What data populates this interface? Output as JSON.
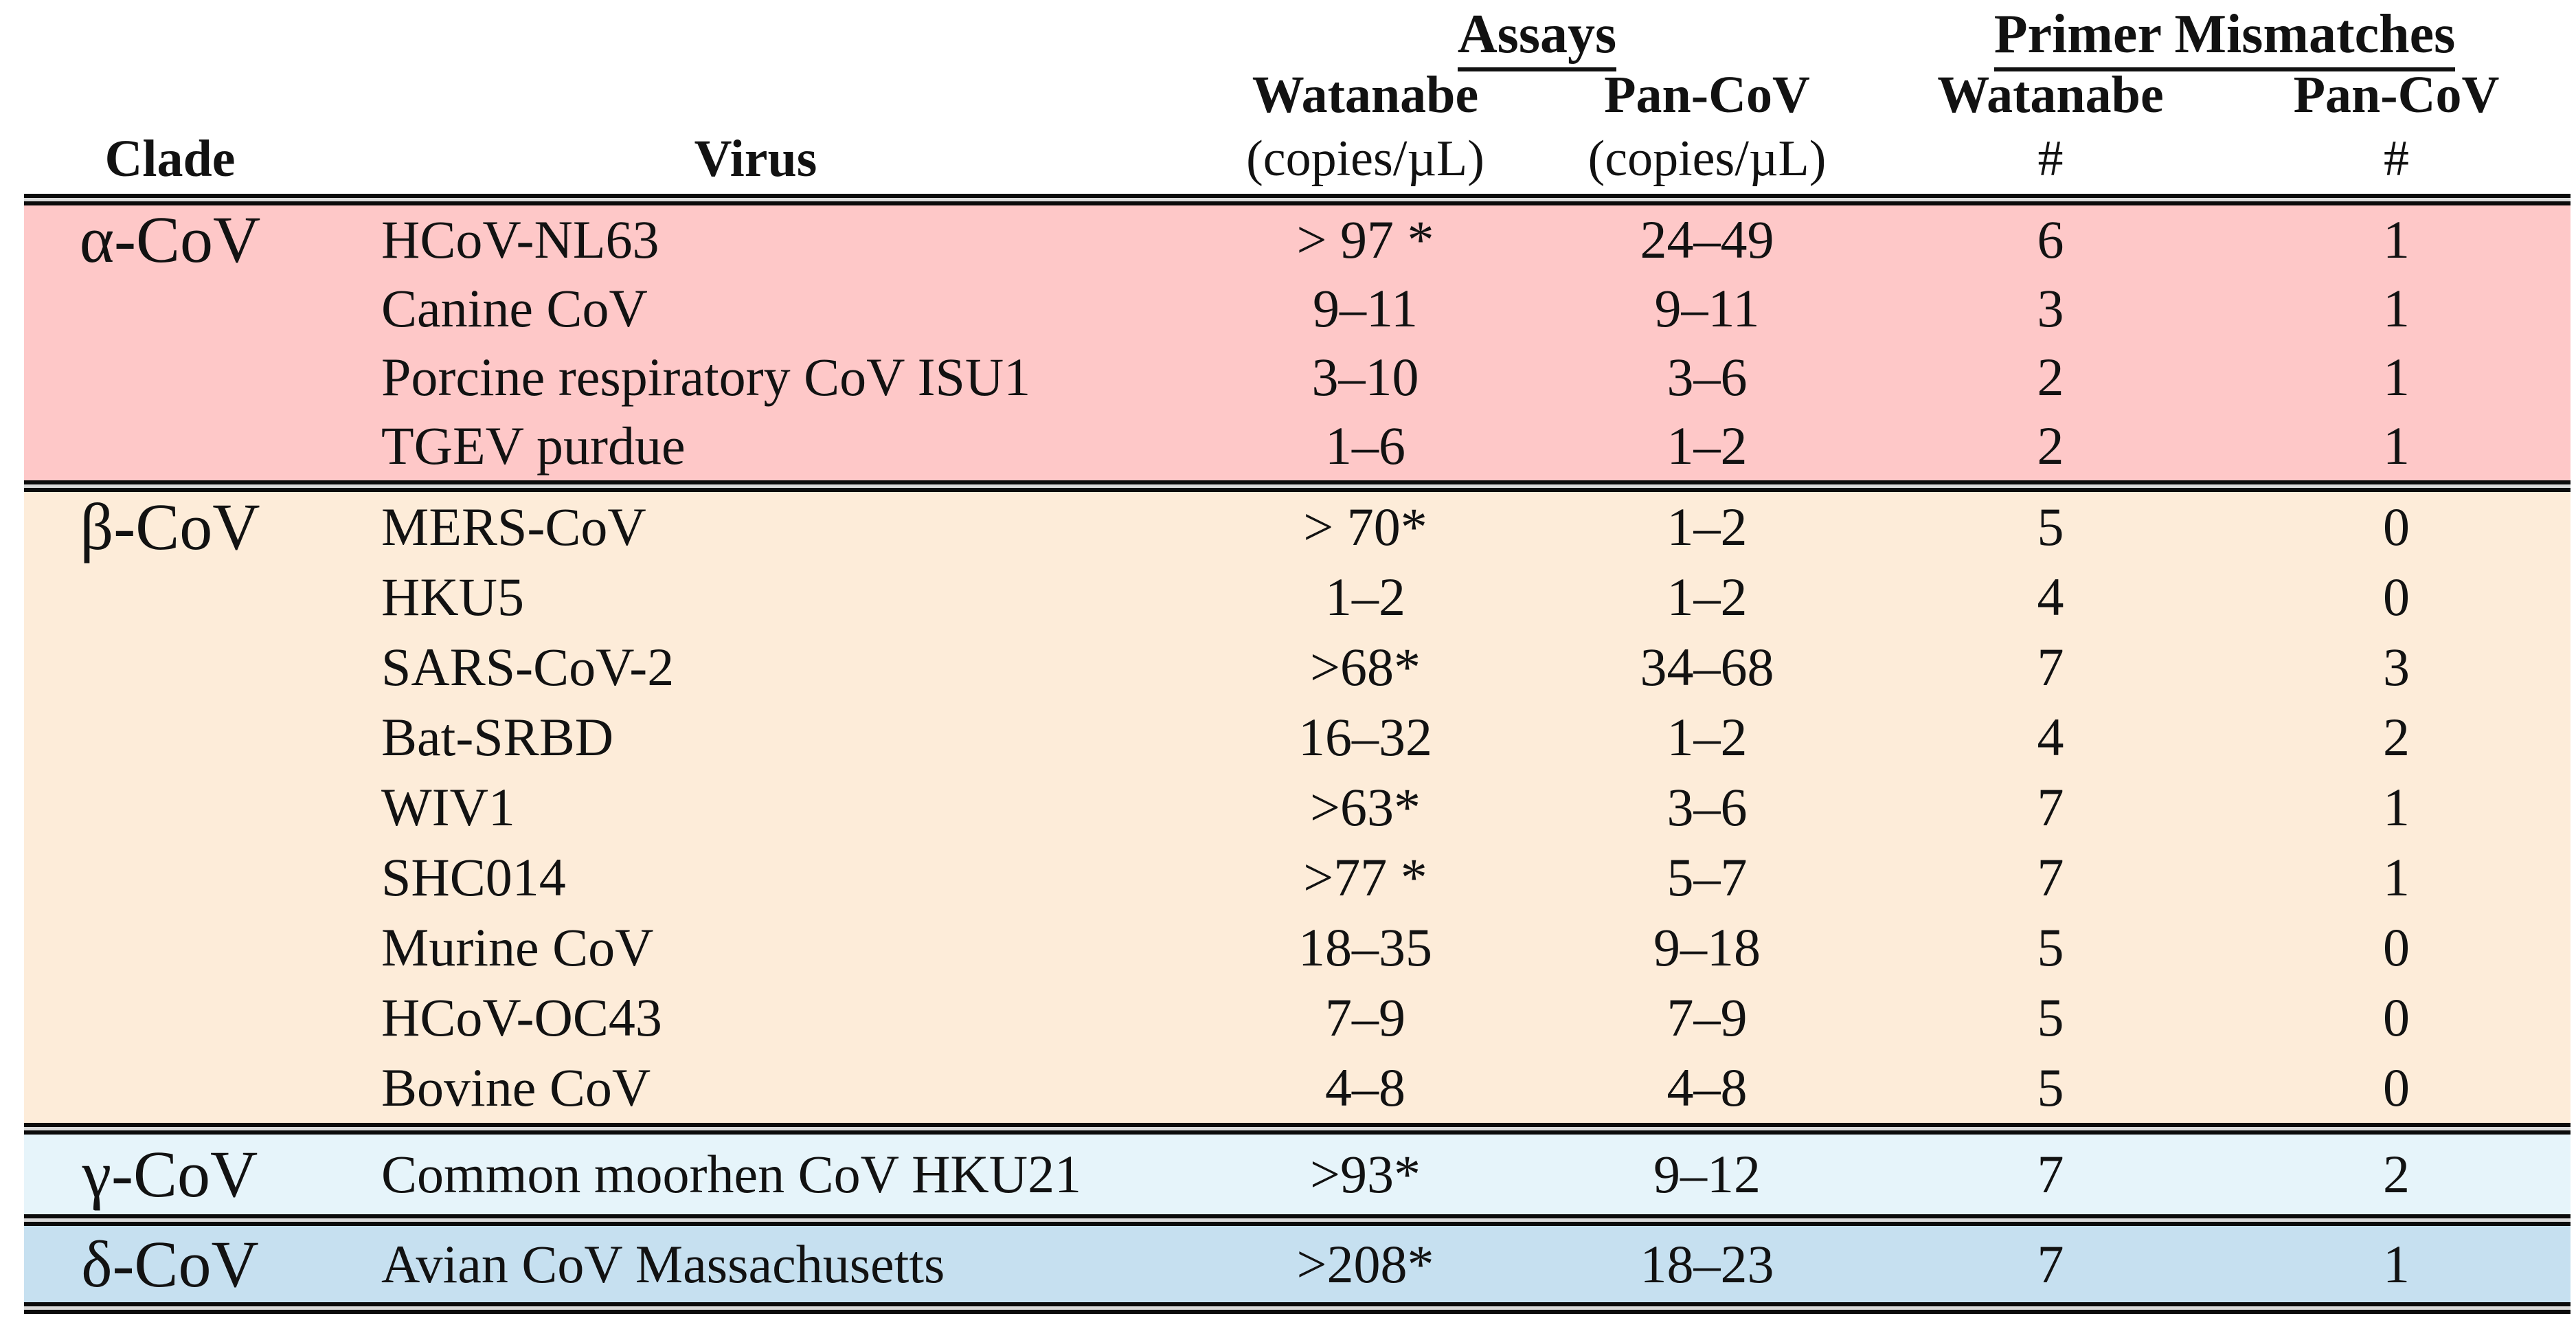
{
  "table": {
    "headers": {
      "group_assays": "Assays",
      "group_mismatches": "Primer Mismatches",
      "col_clade": "Clade",
      "col_virus": "Virus",
      "assay_watanabe": "Watanabe",
      "assay_pancov": "Pan-CoV",
      "mm_watanabe": "Watanabe",
      "mm_pancov": "Pan-CoV",
      "unit_copies_assay_watanabe": "(copies/µL)",
      "unit_copies_assay_pancov": "(copies/µL)",
      "unit_hash_watanabe": "#",
      "unit_hash_pancov": "#"
    },
    "colors": {
      "alpha_section": "#fec8c8",
      "beta_section": "#fdecd9",
      "gamma_section": "#e6f4fa",
      "delta_section": "#c6e0f0",
      "rule": "#0b0b0b"
    },
    "sections": [
      {
        "clade": "α-CoV",
        "rows": [
          {
            "virus": "HCoV-NL63",
            "watanabe": "> 97 *",
            "pancov": "24–49",
            "w_mm": "6",
            "p_mm": "1"
          },
          {
            "virus": "Canine CoV",
            "watanabe": "9–11",
            "pancov": "9–11",
            "w_mm": "3",
            "p_mm": "1"
          },
          {
            "virus": "Porcine respiratory CoV ISU1",
            "watanabe": "3–10",
            "pancov": "3–6",
            "w_mm": "2",
            "p_mm": "1"
          },
          {
            "virus": "TGEV purdue",
            "watanabe": "1–6",
            "pancov": "1–2",
            "w_mm": "2",
            "p_mm": "1"
          }
        ]
      },
      {
        "clade": "β-CoV",
        "rows": [
          {
            "virus": "MERS-CoV",
            "watanabe": "> 70*",
            "pancov": "1–2",
            "w_mm": "5",
            "p_mm": "0"
          },
          {
            "virus": "HKU5",
            "watanabe": "1–2",
            "pancov": "1–2",
            "w_mm": "4",
            "p_mm": "0"
          },
          {
            "virus": "SARS-CoV-2",
            "watanabe": ">68*",
            "pancov": "34–68",
            "w_mm": "7",
            "p_mm": "3"
          },
          {
            "virus": "Bat-SRBD",
            "watanabe": "16–32",
            "pancov": "1–2",
            "w_mm": "4",
            "p_mm": "2"
          },
          {
            "virus": "WIV1",
            "watanabe": ">63*",
            "pancov": "3–6",
            "w_mm": "7",
            "p_mm": "1"
          },
          {
            "virus": "SHC014",
            "watanabe": ">77 *",
            "pancov": "5–7",
            "w_mm": "7",
            "p_mm": "1"
          },
          {
            "virus": "Murine CoV",
            "watanabe": "18–35",
            "pancov": "9–18",
            "w_mm": "5",
            "p_mm": "0"
          },
          {
            "virus": "HCoV-OC43",
            "watanabe": "7–9",
            "pancov": "7–9",
            "w_mm": "5",
            "p_mm": "0"
          },
          {
            "virus": "Bovine CoV",
            "watanabe": "4–8",
            "pancov": "4–8",
            "w_mm": "5",
            "p_mm": "0"
          }
        ]
      },
      {
        "clade": "γ-CoV",
        "rows": [
          {
            "virus": "Common moorhen CoV HKU21",
            "watanabe": ">93*",
            "pancov": "9–12",
            "w_mm": "7",
            "p_mm": "2"
          }
        ]
      },
      {
        "clade": "δ-CoV",
        "rows": [
          {
            "virus": "Avian CoV Massachusetts",
            "watanabe": ">208*",
            "pancov": "18–23",
            "w_mm": "7",
            "p_mm": "1"
          }
        ]
      }
    ]
  }
}
